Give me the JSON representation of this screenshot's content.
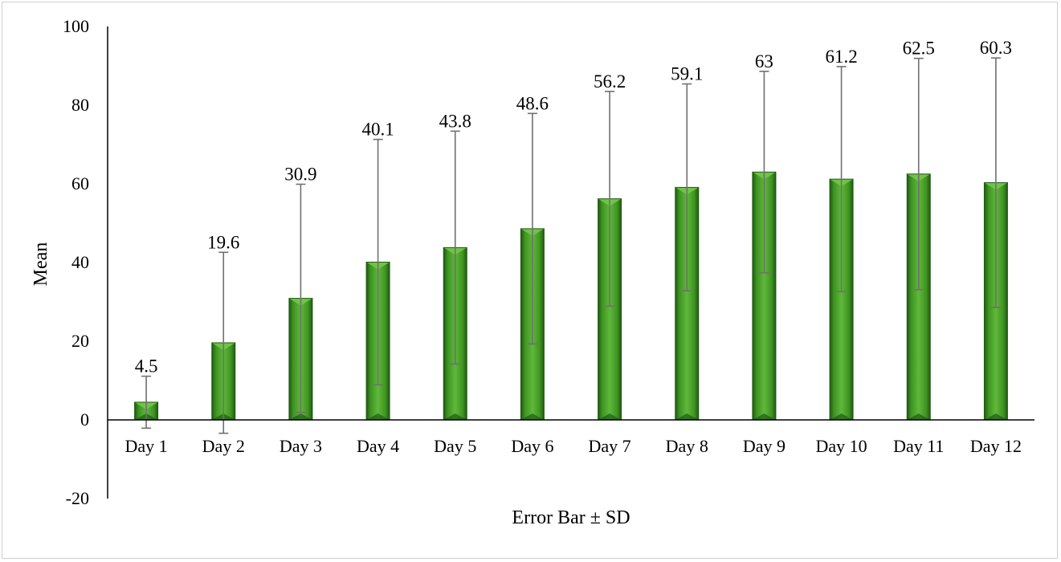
{
  "chart_data": {
    "type": "bar",
    "title": "",
    "xlabel": "Error Bar ± SD",
    "ylabel": "Mean",
    "ylim": [
      -20,
      100
    ],
    "yticks": [
      -20,
      0,
      20,
      40,
      60,
      80,
      100
    ],
    "ytick_labels": [
      "-20",
      "0",
      "20",
      "40",
      "60",
      "80",
      "100"
    ],
    "categories": [
      "Day 1",
      "Day 2",
      "Day 3",
      "Day 4",
      "Day 5",
      "Day 6",
      "Day 7",
      "Day 8",
      "Day 9",
      "Day 10",
      "Day 11",
      "Day 12"
    ],
    "values": [
      4.5,
      19.6,
      30.9,
      40.1,
      43.8,
      48.6,
      56.2,
      59.1,
      63,
      61.2,
      62.5,
      60.3
    ],
    "value_labels": [
      "4.5",
      "19.6",
      "30.9",
      "40.1",
      "43.8",
      "48.6",
      "56.2",
      "59.1",
      "63",
      "61.2",
      "62.5",
      "60.3"
    ],
    "sd": [
      6.6,
      23.0,
      29.0,
      31.2,
      29.6,
      29.3,
      27.3,
      26.3,
      25.6,
      28.6,
      29.4,
      31.7
    ],
    "bar_color": "#3f9422",
    "bar_highlight": "#74c64a",
    "bar_shadow": "#1f5a12",
    "error_bar_color": "#707070"
  }
}
